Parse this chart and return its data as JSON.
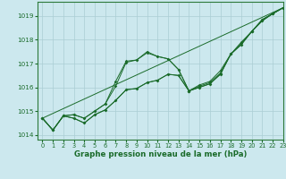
{
  "xlabel": "Graphe pression niveau de la mer (hPa)",
  "bg_color": "#cce8ee",
  "grid_color": "#aacdd4",
  "line_color": "#1a6b2a",
  "spine_color": "#2d7a3a",
  "xlim": [
    -0.5,
    23
  ],
  "ylim": [
    1013.8,
    1019.6
  ],
  "yticks": [
    1014,
    1015,
    1016,
    1017,
    1018,
    1019
  ],
  "xticks": [
    0,
    1,
    2,
    3,
    4,
    5,
    6,
    7,
    8,
    9,
    10,
    11,
    12,
    13,
    14,
    15,
    16,
    17,
    18,
    19,
    20,
    21,
    22,
    23
  ],
  "series": [
    [
      1014.7,
      1014.2,
      1014.8,
      1014.7,
      1014.5,
      1014.85,
      1015.05,
      1015.45,
      1015.9,
      1015.95,
      1016.2,
      1016.3,
      1016.55,
      1016.5,
      1015.85,
      1016.0,
      1016.15,
      1016.55,
      1017.4,
      1017.8,
      1018.35,
      1018.8,
      1019.1,
      1019.35
    ],
    [
      1014.7,
      1014.2,
      1014.8,
      1014.85,
      1014.7,
      1015.0,
      1015.3,
      1016.05,
      1017.05,
      1017.15,
      1017.45,
      1017.3,
      1017.2,
      1016.75,
      1015.85,
      1016.05,
      1016.2,
      1016.6,
      1017.4,
      1017.85,
      1018.35,
      1018.85,
      1019.1,
      1019.35
    ],
    [
      1014.7,
      1014.2,
      1014.8,
      1014.85,
      1014.7,
      1015.0,
      1015.3,
      1016.25,
      1017.1,
      1017.15,
      1017.5,
      1017.3,
      1017.2,
      1016.75,
      1015.85,
      1016.1,
      1016.25,
      1016.7,
      1017.4,
      1017.9,
      1018.35,
      1018.85,
      1019.1,
      1019.35
    ],
    [
      1014.7,
      1014.2,
      1014.8,
      1014.7,
      1014.5,
      1014.85,
      1015.05,
      1015.45,
      1015.9,
      1015.95,
      1016.2,
      1016.3,
      1016.55,
      1016.5,
      1015.85,
      1016.0,
      1016.15,
      1016.55,
      1017.4,
      1017.8,
      1018.35,
      1018.8,
      1019.1,
      1019.35
    ]
  ],
  "straight_line": [
    [
      0,
      23
    ],
    [
      1014.7,
      1019.35
    ]
  ]
}
